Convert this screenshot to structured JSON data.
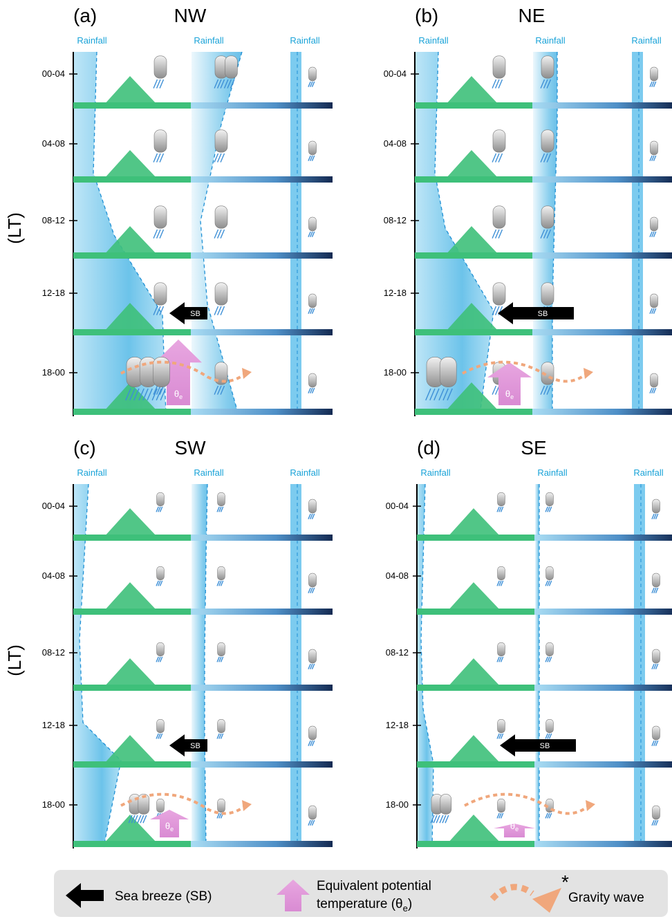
{
  "y_axis_label": "(LT)",
  "time_labels": [
    "00-04",
    "04-08",
    "08-12",
    "12-18",
    "18-00"
  ],
  "panels": [
    {
      "label": "(a)",
      "title": "NW",
      "rainfall_labels": [
        "Rainfall",
        "Rainfall",
        "Rainfall"
      ],
      "sea_breeze": "SB",
      "theta": "θ",
      "theta_sub": "e"
    },
    {
      "label": "(b)",
      "title": "NE",
      "rainfall_labels": [
        "Rainfall",
        "Rainfall",
        "Rainfall"
      ],
      "sea_breeze": "SB",
      "theta": "θ",
      "theta_sub": "e"
    },
    {
      "label": "(c)",
      "title": "SW",
      "rainfall_labels": [
        "Rainfall",
        "Rainfall",
        "Rainfall"
      ],
      "sea_breeze": "SB",
      "theta": "θ",
      "theta_sub": "e"
    },
    {
      "label": "(d)",
      "title": "SE",
      "rainfall_labels": [
        "Rainfall",
        "Rainfall",
        "Rainfall"
      ],
      "sea_breeze": "SB",
      "theta": "θ",
      "theta_sub": "e"
    }
  ],
  "legend": {
    "sea_breeze": "Sea breeze (SB)",
    "theta_line1": "Equivalent potential",
    "theta_line2": "temperature (θ",
    "theta_sub": "e",
    "theta_close": ")",
    "gravity_wave": "Gravity wave",
    "asterisk": "*"
  }
}
